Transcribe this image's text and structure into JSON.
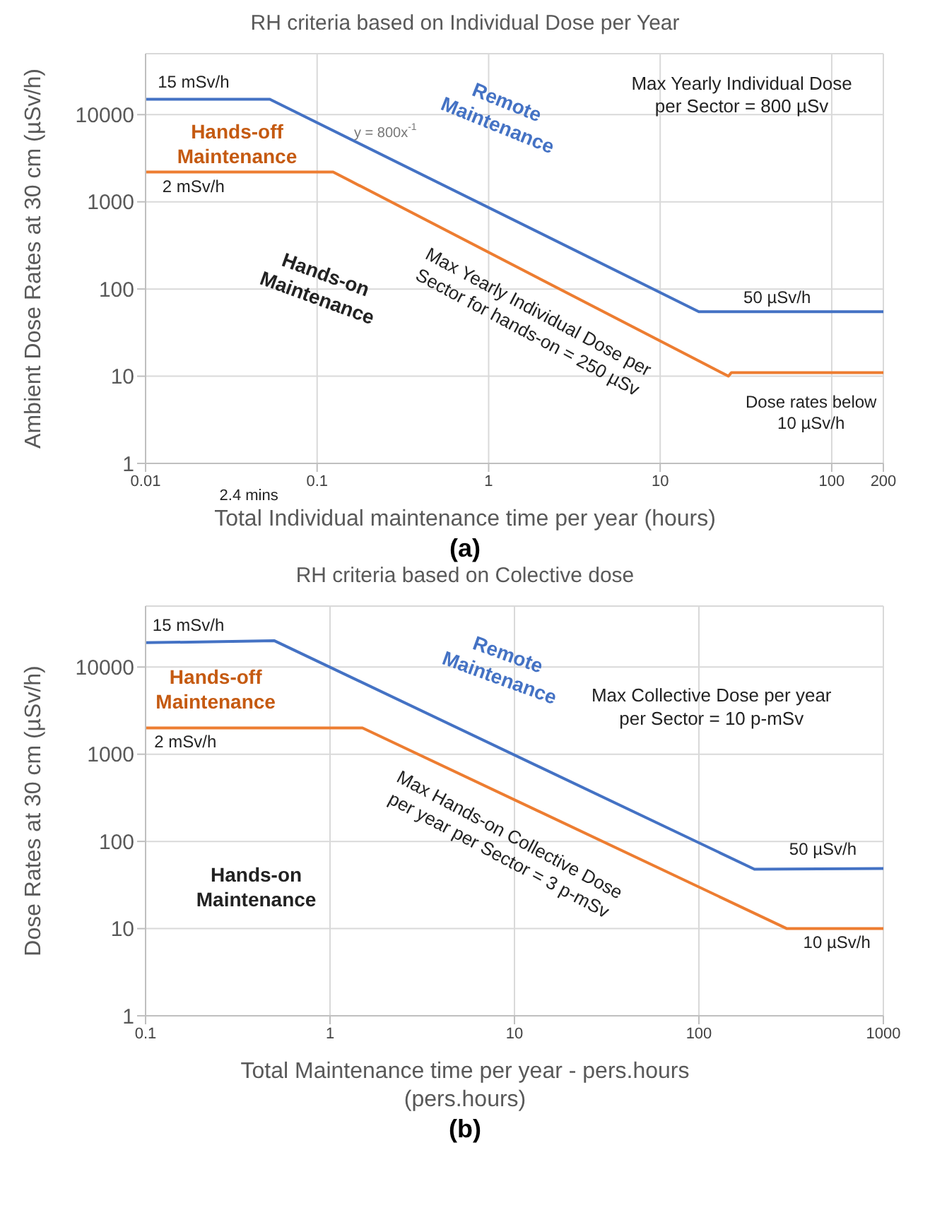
{
  "chart_data": [
    {
      "type": "line",
      "title": "RH criteria based on Individual Dose per Year",
      "xlabel": "Total Individual maintenance time per year (hours)",
      "ylabel": "Ambient Dose Rates at 30 cm (µSv/h)",
      "log": "xy",
      "grid": true,
      "legend": false,
      "xlim": [
        0.01,
        200
      ],
      "xticks": [
        0.01,
        0.1,
        1,
        10,
        100,
        200
      ],
      "ylim": [
        1,
        50000
      ],
      "yticks": [
        1,
        10,
        100,
        1000,
        10000
      ],
      "series": [
        {
          "color": "#4472c4",
          "x": [
            0.01,
            0.053,
            16.8,
            200
          ],
          "values": [
            15000,
            15000,
            55,
            55
          ]
        },
        {
          "color": "#ed7d31",
          "x": [
            0.01,
            0.124,
            25,
            26,
            200
          ],
          "values": [
            2200,
            2200,
            10,
            11,
            11
          ]
        }
      ],
      "annotations": [
        "15 mSv/h",
        "2 mSv/h",
        "Hands-off\nMaintenance",
        "Remote\nMaintenance",
        "y = 800x$^{-1}$",
        "Max Yearly Individual Dose\nper Sector = 800 µSv",
        "Hands-on\nMaintenance",
        "Max Yearly Individual Dose per\nSector for hands-on = 250 µSv",
        "50 µSv/h",
        "Dose rates below\n10 µSv/h",
        "2.4 mins",
        "(a)"
      ]
    },
    {
      "type": "line",
      "title": "RH criteria based on Colective dose",
      "xlabel": "Total Maintenance time per year - pers.hours\n(pers.hours)",
      "ylabel": "Dose Rates at 30 cm (µSv/h)",
      "log": "xy",
      "grid": true,
      "legend": false,
      "xlim": [
        0.1,
        1000
      ],
      "xticks": [
        0.1,
        1,
        10,
        100,
        1000
      ],
      "ylim": [
        1,
        50000
      ],
      "yticks": [
        1,
        10,
        100,
        1000,
        10000
      ],
      "series": [
        {
          "color": "#4472c4",
          "x": [
            0.1,
            0.5,
            200,
            1000
          ],
          "values": [
            19000,
            20000,
            48,
            49
          ]
        },
        {
          "color": "#ed7d31",
          "x": [
            0.1,
            1.5,
            300,
            1000
          ],
          "values": [
            2000,
            2000,
            10,
            10
          ]
        }
      ],
      "annotations": [
        "15 mSv/h",
        "2 mSv/h",
        "Hands-off\nMaintenance",
        "Remote\nMaintenance",
        "Max Collective Dose per year\nper Sector = 10 p-mSv",
        "Max Hands-on Collective Dose\nper year per Sector = 3 p-mSv",
        "Hands-on\nMaintenance",
        "50 µSv/h",
        "10 µSv/h",
        "(b)"
      ]
    }
  ]
}
